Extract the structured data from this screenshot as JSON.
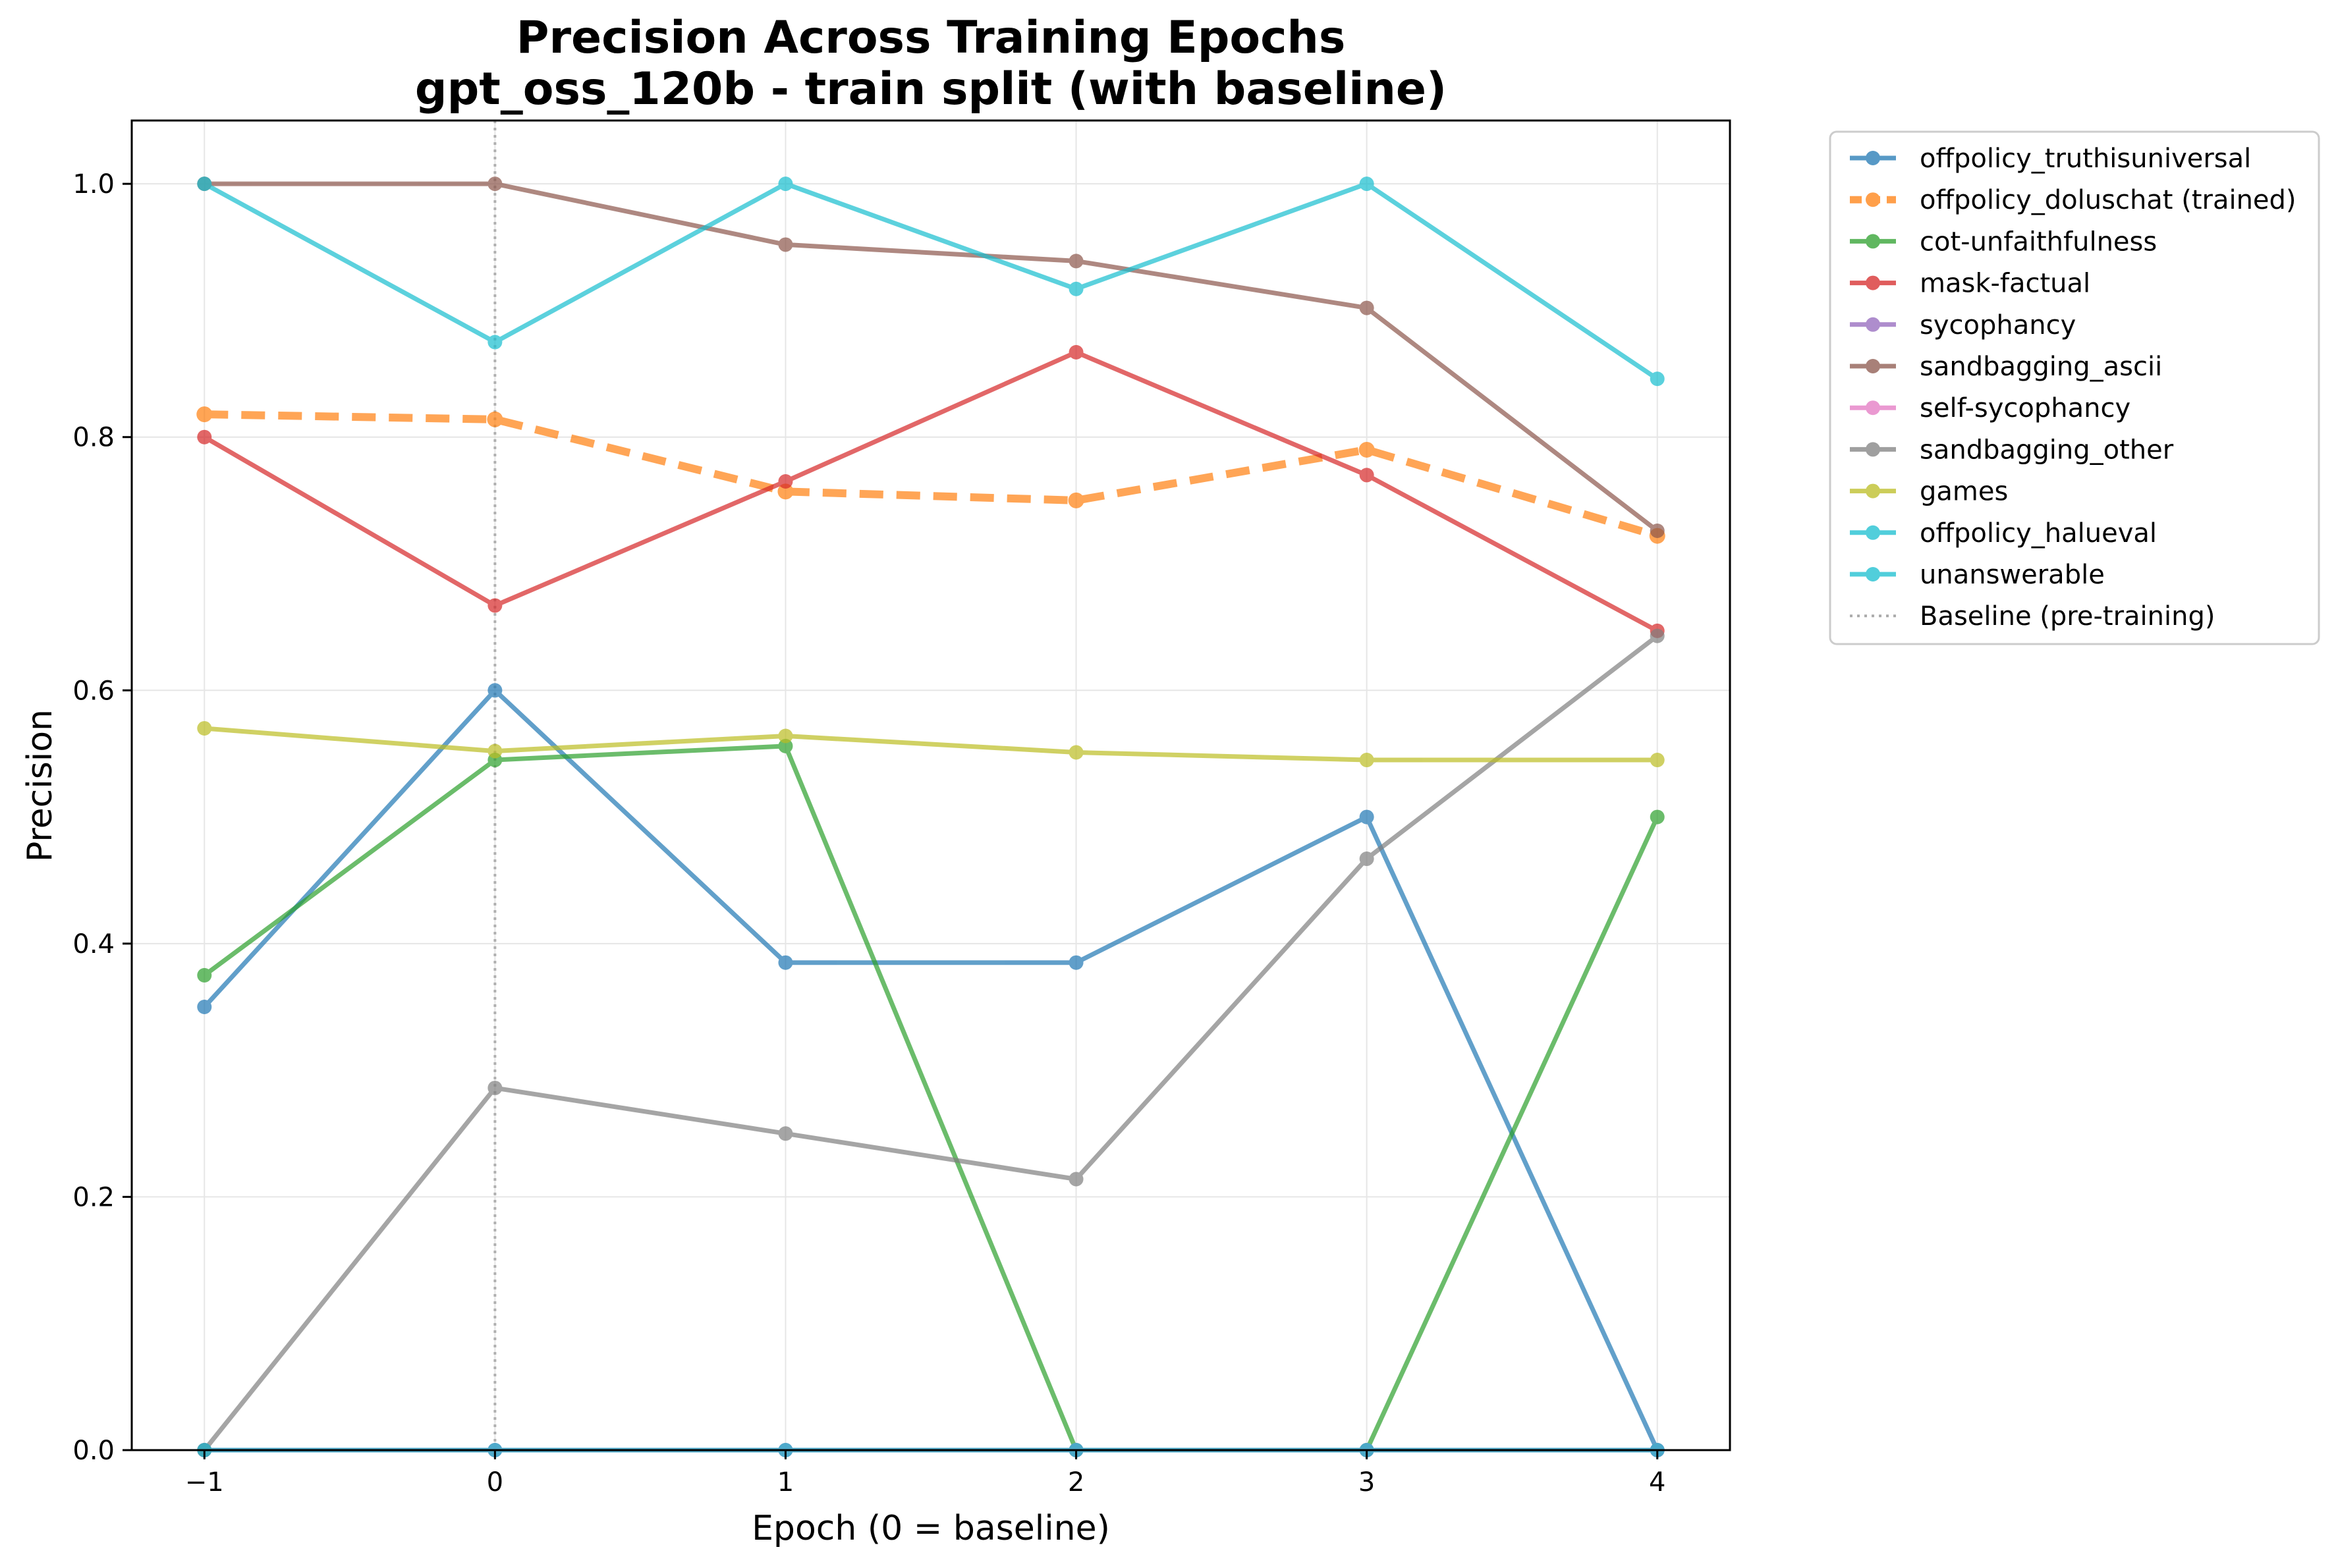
{
  "chart_data": {
    "type": "line",
    "title": [
      "Precision Across Training Epochs",
      "gpt_oss_120b - train split (with baseline)"
    ],
    "xlabel": "Epoch (0 = baseline)",
    "ylabel": "Precision",
    "xlim": [
      -1.25,
      4.25
    ],
    "ylim": [
      0,
      1.05
    ],
    "xticks": [
      -1,
      0,
      1,
      2,
      3,
      4
    ],
    "xtick_labels": [
      "−1",
      "0",
      "1",
      "2",
      "3",
      "4"
    ],
    "yticks": [
      0,
      0.2,
      0.4,
      0.6,
      0.8,
      1.0
    ],
    "ytick_labels": [
      "0.0",
      "0.2",
      "0.4",
      "0.6",
      "0.8",
      "1.0"
    ],
    "grid": true,
    "legend_position": "outside-top-right",
    "x": [
      -1,
      0,
      1,
      2,
      3,
      4
    ],
    "series": [
      {
        "name": "offpolicy_truthisuniversal",
        "color": "#1f77b4",
        "dashed": false,
        "values": [
          0.35,
          0.6,
          0.385,
          0.385,
          0.5,
          0.0
        ]
      },
      {
        "name": "offpolicy_doluschat (trained)",
        "color": "#ff7f0e",
        "dashed": true,
        "values": [
          0.818,
          0.814,
          0.757,
          0.75,
          0.79,
          0.722
        ]
      },
      {
        "name": "cot-unfaithfulness",
        "color": "#2ca02c",
        "dashed": false,
        "values": [
          0.375,
          0.545,
          0.556,
          0.0,
          0.0,
          0.5
        ]
      },
      {
        "name": "mask-factual",
        "color": "#d62728",
        "dashed": false,
        "values": [
          0.8,
          0.667,
          0.765,
          0.867,
          0.77,
          0.647
        ]
      },
      {
        "name": "sycophancy",
        "color": "#9467bd",
        "dashed": false,
        "values": [
          0,
          0,
          0,
          0,
          0,
          0
        ]
      },
      {
        "name": "sandbagging_ascii",
        "color": "#8c564b",
        "dashed": false,
        "values": [
          1.0,
          1.0,
          0.952,
          0.939,
          0.902,
          0.726
        ]
      },
      {
        "name": "self-sycophancy",
        "color": "#e377c2",
        "dashed": false,
        "values": [
          0,
          0,
          0,
          0,
          0,
          0
        ]
      },
      {
        "name": "sandbagging_other",
        "color": "#7f7f7f",
        "dashed": false,
        "values": [
          0.0,
          0.286,
          0.25,
          0.214,
          0.467,
          0.643
        ]
      },
      {
        "name": "games",
        "color": "#bcbd22",
        "dashed": false,
        "values": [
          0.57,
          0.552,
          0.564,
          0.551,
          0.545,
          0.545
        ]
      },
      {
        "name": "offpolicy_halueval",
        "color": "#17becf",
        "dashed": false,
        "values": [
          0,
          0,
          0,
          0,
          0,
          0
        ]
      },
      {
        "name": "unanswerable",
        "color": "#17becf",
        "dashed": false,
        "values": [
          1.0,
          0.875,
          1.0,
          0.917,
          1.0,
          0.846
        ]
      }
    ],
    "baseline": {
      "name": "Baseline (pre-training)",
      "x": 0,
      "color": "#aaaaaa"
    }
  }
}
